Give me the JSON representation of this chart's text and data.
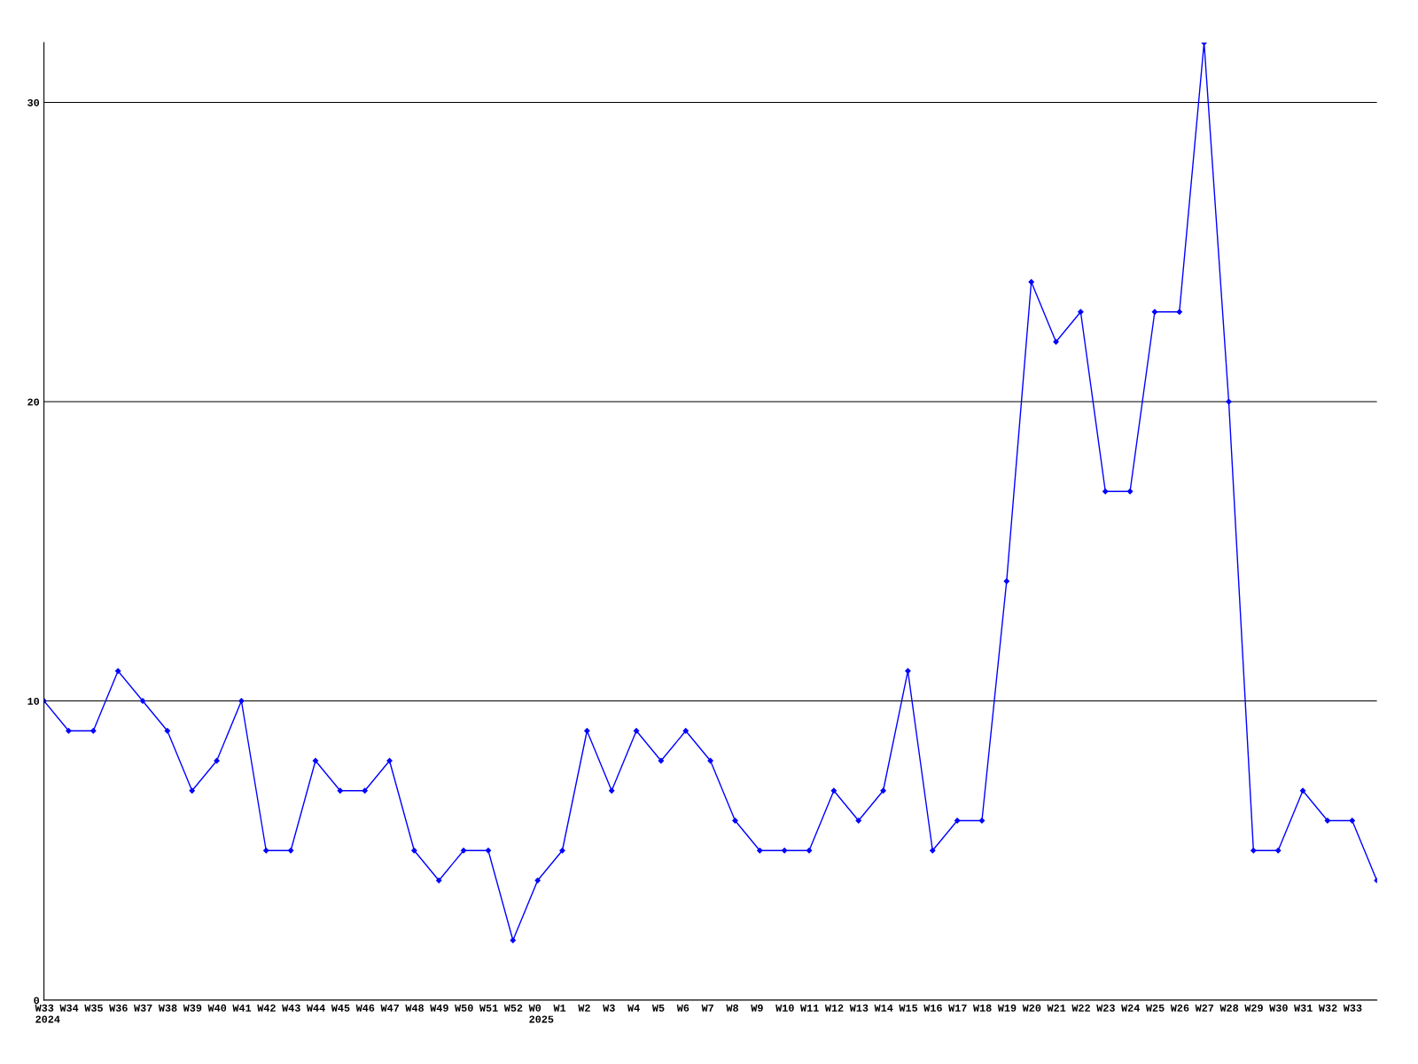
{
  "chart_data": {
    "type": "line",
    "categories": [
      "W33\n2024",
      "W34",
      "W35",
      "W36",
      "W37",
      "W38",
      "W39",
      "W40",
      "W41",
      "W42",
      "W43",
      "W44",
      "W45",
      "W46",
      "W47",
      "W48",
      "W49",
      "W50",
      "W51",
      "W52",
      "W0\n2025",
      "W1",
      "W2",
      "W3",
      "W4",
      "W5",
      "W6",
      "W7",
      "W8",
      "W9",
      "W10",
      "W11",
      "W12",
      "W13",
      "W14",
      "W15",
      "W16",
      "W17",
      "W18",
      "W19",
      "W20",
      "W21",
      "W22",
      "W23",
      "W24",
      "W25",
      "W26",
      "W27",
      "W28",
      "W29",
      "W30",
      "W31",
      "W32",
      "W33",
      null
    ],
    "series": [
      {
        "color": "#0000ff",
        "values": [
          10,
          9,
          9,
          11,
          10,
          9,
          7,
          8,
          10,
          5,
          5,
          8,
          7,
          7,
          8,
          5,
          4,
          5,
          5,
          2,
          4,
          5,
          9,
          7,
          9,
          8,
          9,
          8,
          6,
          5,
          5,
          5,
          7,
          6,
          7,
          11,
          5,
          6,
          6,
          14,
          24,
          22,
          23,
          17,
          17,
          23,
          23,
          32,
          20,
          5,
          5,
          7,
          6,
          6,
          4
        ]
      }
    ],
    "ylim": [
      0,
      32
    ],
    "yticks": [
      0,
      10,
      20,
      30
    ],
    "grid": "y",
    "marker": "diamond",
    "line_style": "solid",
    "legend": false
  }
}
